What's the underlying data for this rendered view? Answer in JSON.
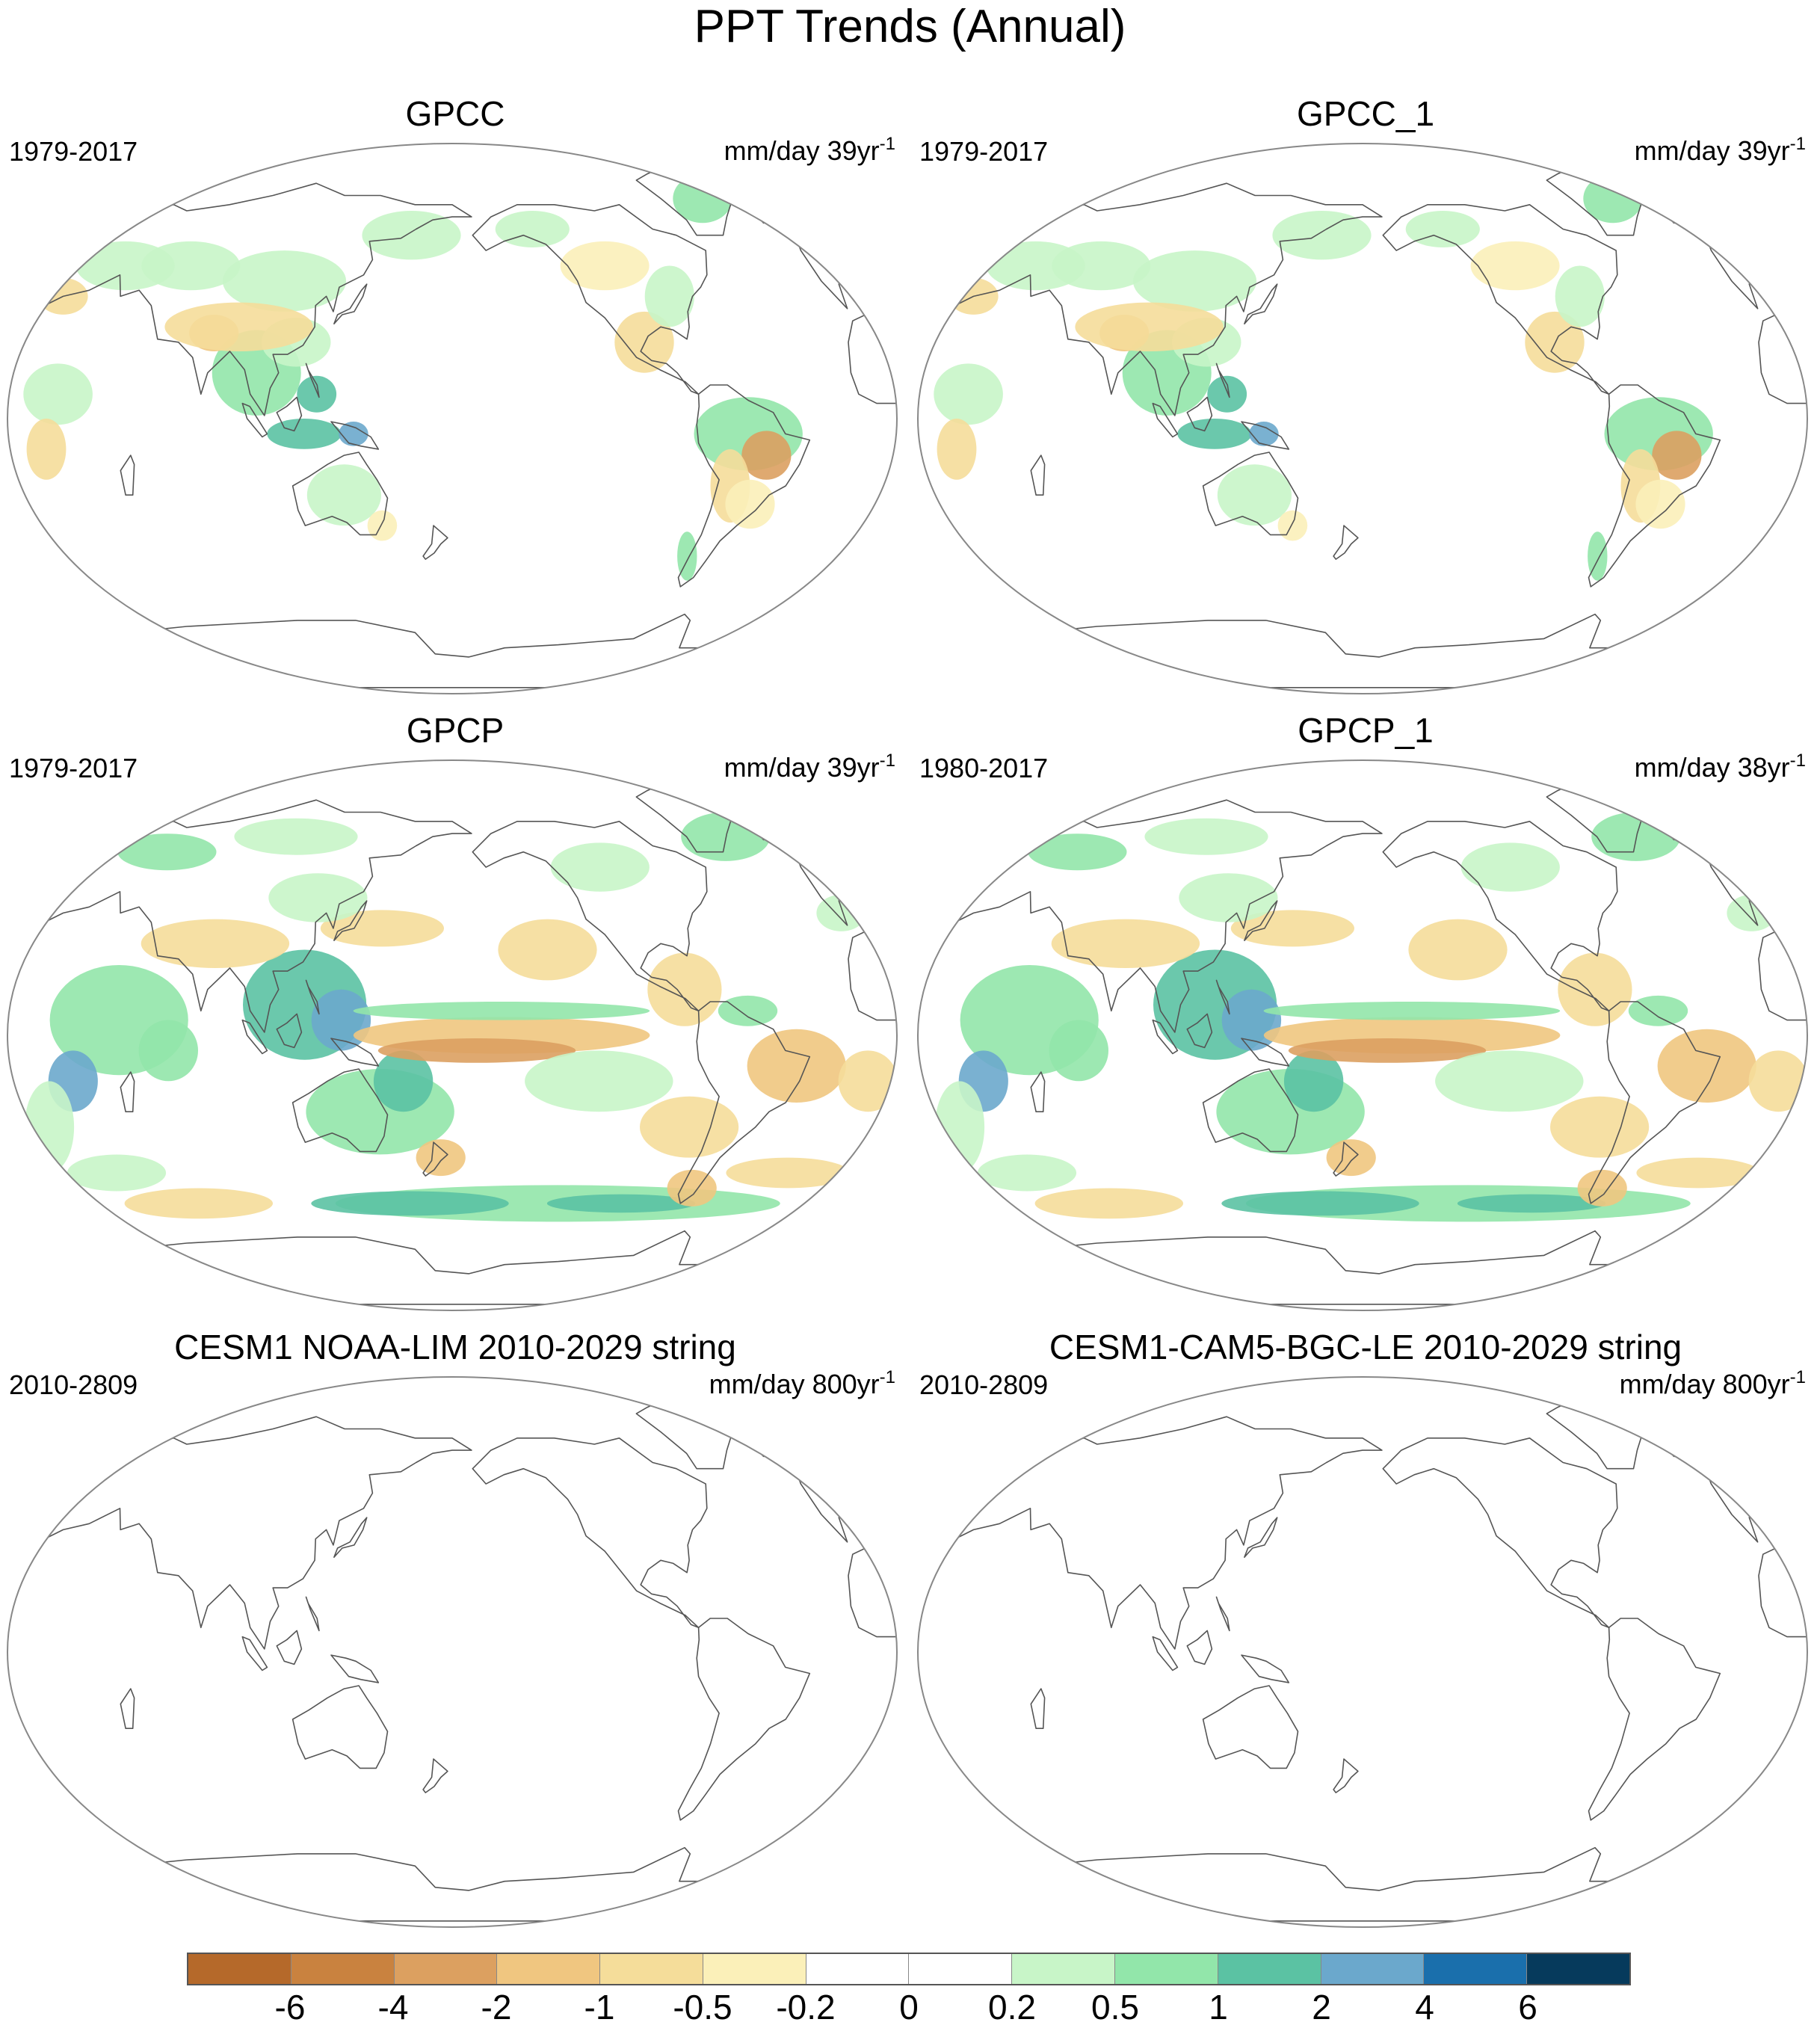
{
  "figure_title": "PPT Trends (Annual)",
  "panels": [
    {
      "title": "GPCC",
      "period": "1979-2017",
      "units_prefix": "mm/day 39yr",
      "units_exp": "-1",
      "field": "gpcc"
    },
    {
      "title": "GPCC_1",
      "period": "1979-2017",
      "units_prefix": "mm/day 39yr",
      "units_exp": "-1",
      "field": "gpcc"
    },
    {
      "title": "GPCP",
      "period": "1979-2017",
      "units_prefix": "mm/day 39yr",
      "units_exp": "-1",
      "field": "gpcp"
    },
    {
      "title": "GPCP_1",
      "period": "1980-2017",
      "units_prefix": "mm/day 38yr",
      "units_exp": "-1",
      "field": "gpcp"
    },
    {
      "title": "CESM1 NOAA-LIM 2010-2029 string",
      "period": "2010-2809",
      "units_prefix": "mm/day 800yr",
      "units_exp": "-1",
      "field": "none"
    },
    {
      "title": "CESM1-CAM5-BGC-LE 2010-2029 string",
      "period": "2010-2809",
      "units_prefix": "mm/day 800yr",
      "units_exp": "-1",
      "field": "none"
    }
  ],
  "colorbar": {
    "labels": [
      "-6",
      "-4",
      "-2",
      "-1",
      "-0.5",
      "-0.2",
      "0",
      "0.2",
      "0.5",
      "1",
      "2",
      "4",
      "6"
    ],
    "colors": [
      "#b5692a",
      "#c9823f",
      "#dca060",
      "#f0c680",
      "#f5dd9a",
      "#fbf0b9",
      "#ffffff",
      "#ffffff",
      "#c8f5c8",
      "#92e6aa",
      "#5bc2a3",
      "#6ba8cc",
      "#1a6fac",
      "#063a5c"
    ]
  },
  "map": {
    "projection": "robinson-like",
    "center": "pacific",
    "coastline_color": "#555555"
  }
}
